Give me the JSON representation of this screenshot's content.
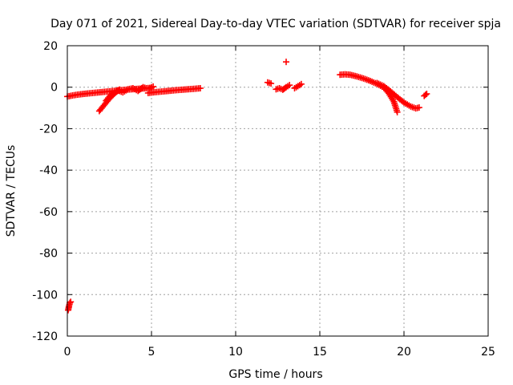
{
  "chart_data": {
    "type": "scatter",
    "title": "Day 071 of 2021, Sidereal Day-to-day VTEC variation (SDTVAR) for receiver spja",
    "xlabel": "GPS time / hours",
    "ylabel": "SDTVAR / TECUs",
    "xlim": [
      0,
      25
    ],
    "ylim": [
      -120,
      20
    ],
    "xticks": [
      0,
      5,
      10,
      15,
      20,
      25
    ],
    "yticks": [
      20,
      0,
      -20,
      -40,
      -60,
      -80,
      -100,
      -120
    ],
    "grid": true,
    "marker": "+",
    "color": "#ff0000",
    "segments": [
      {
        "x": [
          0.0,
          0.3,
          0.6,
          1.0,
          1.5,
          2.0,
          2.5,
          3.0,
          3.5,
          4.0,
          4.5,
          5.0
        ],
        "y": [
          -4.5,
          -4.0,
          -3.6,
          -3.2,
          -2.8,
          -2.4,
          -2.0,
          -1.6,
          -1.2,
          -0.9,
          -0.6,
          -0.3
        ]
      },
      {
        "x": [
          4.8,
          5.2,
          5.6,
          6.0,
          6.5,
          7.0,
          7.5,
          7.9
        ],
        "y": [
          -2.8,
          -2.4,
          -2.1,
          -1.8,
          -1.4,
          -1.1,
          -0.8,
          -0.5
        ]
      },
      {
        "x": [
          1.9,
          2.1,
          2.3,
          2.5,
          2.7,
          2.9,
          3.1
        ],
        "y": [
          -11.5,
          -9.5,
          -7.5,
          -5.5,
          -3.8,
          -2.3,
          -1.2
        ]
      },
      {
        "x": [
          2.3,
          2.5,
          2.7,
          2.9,
          3.1
        ],
        "y": [
          -6.5,
          -4.5,
          -3.0,
          -2.0,
          -1.2
        ]
      },
      {
        "x": [
          3.0,
          3.3,
          3.6,
          3.9,
          4.2,
          4.5,
          4.8,
          5.1
        ],
        "y": [
          -1.5,
          -2.5,
          -1.0,
          -0.5,
          -1.8,
          0.0,
          -0.8,
          0.3
        ]
      },
      {
        "x": [
          0.05,
          0.1,
          0.15,
          0.2
        ],
        "y": [
          -107.5,
          -105.5,
          -104.0,
          -103.5
        ]
      },
      {
        "x": [
          11.9,
          12.1
        ],
        "y": [
          2.3,
          1.8
        ]
      },
      {
        "x": [
          12.4,
          12.6,
          12.8,
          13.0,
          13.2
        ],
        "y": [
          -1.0,
          -0.5,
          -1.2,
          0.0,
          1.0
        ]
      },
      {
        "x": [
          13.0
        ],
        "y": [
          12.2
        ]
      },
      {
        "x": [
          13.5,
          13.7,
          13.9
        ],
        "y": [
          -0.5,
          0.5,
          1.5
        ]
      },
      {
        "x": [
          16.2,
          16.5,
          16.8,
          17.2,
          17.6,
          18.0,
          18.4,
          18.8,
          19.1,
          19.4,
          19.6
        ],
        "y": [
          6.0,
          6.2,
          6.0,
          5.2,
          4.2,
          3.0,
          1.6,
          -0.2,
          -3.0,
          -7.0,
          -12.0
        ]
      },
      {
        "x": [
          18.4,
          18.8,
          19.2,
          19.6,
          20.0,
          20.4,
          20.7,
          20.9
        ],
        "y": [
          2.0,
          0.5,
          -2.0,
          -4.8,
          -7.4,
          -9.3,
          -10.2,
          -9.8
        ]
      },
      {
        "x": [
          21.2,
          21.35
        ],
        "y": [
          -4.2,
          -3.2
        ]
      }
    ]
  }
}
